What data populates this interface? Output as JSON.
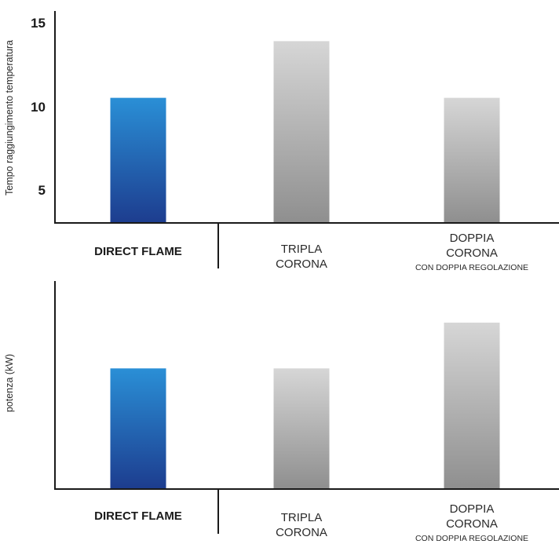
{
  "chart_data": [
    {
      "type": "bar",
      "ylabel": "Tempo raggiungimento temperatura",
      "ylim": [
        3,
        15
      ],
      "yticks": [
        "15",
        "10",
        "5"
      ],
      "categories": [
        {
          "lines": [
            "DIRECT FLAME"
          ],
          "sub": "",
          "highlight": true
        },
        {
          "lines": [
            "TRIPLA",
            "CORONA"
          ],
          "sub": "",
          "highlight": false
        },
        {
          "lines": [
            "DOPPIA",
            "CORONA"
          ],
          "sub": "CON DOPPIA REGOLAZIONE",
          "highlight": false
        }
      ],
      "values": [
        10.5,
        13.9,
        10.5
      ]
    },
    {
      "type": "bar",
      "ylabel": "potenza (kW)",
      "yticks": [],
      "categories": [
        {
          "lines": [
            "DIRECT FLAME"
          ],
          "sub": "",
          "highlight": true
        },
        {
          "lines": [
            "TRIPLA",
            "CORONA"
          ],
          "sub": "",
          "highlight": false
        },
        {
          "lines": [
            "DOPPIA",
            "CORONA"
          ],
          "sub": "CON DOPPIA REGOLAZIONE",
          "highlight": false
        }
      ],
      "values": [
        0.58,
        0.58,
        0.8
      ],
      "value_unit": "fraction of axis height (no scale printed)"
    }
  ],
  "colors": {
    "highlight_top": "#2a8fd6",
    "highlight_bottom": "#1d3d8f",
    "other_top": "#d6d6d6",
    "other_bottom": "#8f8f8f",
    "axis": "#1a1a1a"
  }
}
